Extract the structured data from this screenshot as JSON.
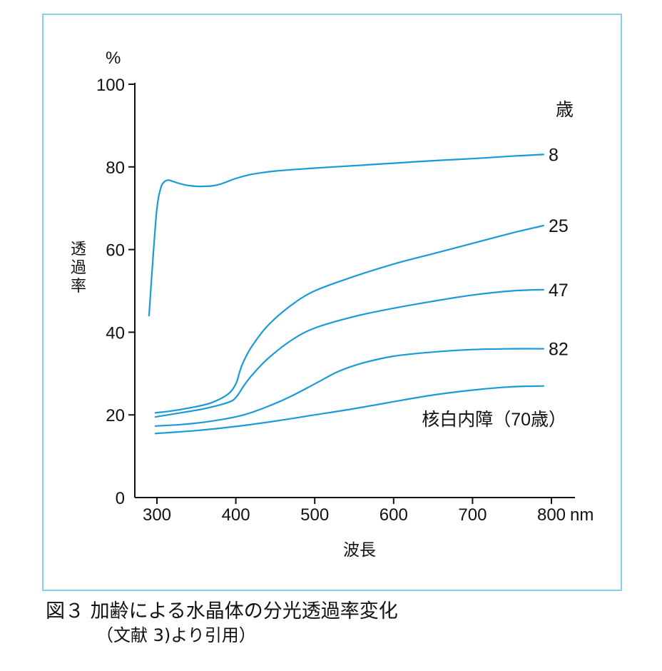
{
  "chart_data": {
    "type": "line",
    "unit_label": "%",
    "ylabel": "透過率",
    "xlabel": "波長",
    "x_unit": "nm",
    "xlim": [
      280,
      810
    ],
    "ylim": [
      0,
      100
    ],
    "x_ticks": [
      "300",
      "400",
      "500",
      "600",
      "700",
      "800"
    ],
    "y_ticks": [
      "0",
      "20",
      "40",
      "60",
      "80",
      "100"
    ],
    "legend_header": "歳",
    "line_color": "#1a9ad6",
    "series": [
      {
        "name": "8",
        "label": "8",
        "x": [
          290,
          295,
          300,
          305,
          310,
          315,
          320,
          330,
          340,
          350,
          360,
          370,
          380,
          390,
          400,
          420,
          450,
          500,
          550,
          600,
          650,
          700,
          750,
          790
        ],
        "y": [
          44,
          58,
          70,
          75,
          76.5,
          76.8,
          76.5,
          75.9,
          75.5,
          75.3,
          75.3,
          75.4,
          75.8,
          76.5,
          77.2,
          78.2,
          79.0,
          79.7,
          80.3,
          80.9,
          81.5,
          82.0,
          82.6,
          83.0
        ]
      },
      {
        "name": "25",
        "label": "25",
        "x": [
          298,
          320,
          350,
          370,
          390,
          400,
          405,
          410,
          420,
          440,
          470,
          500,
          550,
          600,
          650,
          700,
          750,
          790
        ],
        "y": [
          20.5,
          21.0,
          22.0,
          23.0,
          25.0,
          27.5,
          30.5,
          33.0,
          36.5,
          41.5,
          46.5,
          50.0,
          53.5,
          56.5,
          59.0,
          61.5,
          64.0,
          65.8
        ]
      },
      {
        "name": "47",
        "label": "47",
        "x": [
          298,
          330,
          360,
          390,
          400,
          410,
          420,
          440,
          470,
          500,
          550,
          600,
          650,
          700,
          750,
          790
        ],
        "y": [
          19.5,
          20.5,
          21.5,
          23.0,
          24.2,
          27.0,
          29.5,
          33.5,
          38.0,
          41.0,
          43.8,
          45.8,
          47.5,
          49.0,
          50.0,
          50.3
        ]
      },
      {
        "name": "82",
        "label": "82",
        "x": [
          298,
          340,
          380,
          410,
          440,
          470,
          500,
          530,
          560,
          600,
          650,
          700,
          750,
          790
        ],
        "y": [
          17.3,
          17.8,
          18.8,
          20.0,
          22.0,
          24.5,
          27.5,
          30.5,
          32.5,
          34.2,
          35.2,
          35.8,
          36.0,
          36.0
        ]
      },
      {
        "name": "核白内障（70歳）",
        "label": "核白内障（70歳）",
        "x": [
          298,
          350,
          400,
          450,
          500,
          550,
          600,
          650,
          700,
          750,
          790
        ],
        "y": [
          15.5,
          16.2,
          17.2,
          18.5,
          20.0,
          21.5,
          23.2,
          24.8,
          26.0,
          26.8,
          27.0
        ]
      }
    ]
  },
  "caption": {
    "line1": "図３ 加齢による水晶体の分光透過率変化",
    "line2": "（文献 3)より引用）"
  }
}
